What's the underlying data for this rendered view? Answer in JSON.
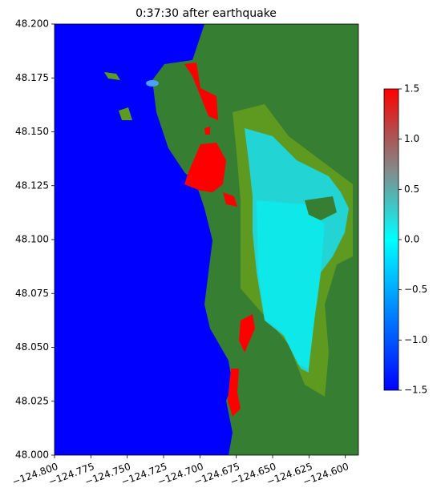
{
  "chart_data": {
    "type": "map",
    "title": "0:37:30 after earthquake",
    "xlim": [
      -124.8,
      -124.591
    ],
    "ylim": [
      48.0,
      48.2
    ],
    "xticks": [
      {
        "value": -124.8,
        "label": "−124.800"
      },
      {
        "value": -124.775,
        "label": "−124.775"
      },
      {
        "value": -124.75,
        "label": "−124.750"
      },
      {
        "value": -124.725,
        "label": "−124.725"
      },
      {
        "value": -124.7,
        "label": "−124.700"
      },
      {
        "value": -124.675,
        "label": "−124.675"
      },
      {
        "value": -124.65,
        "label": "−124.650"
      },
      {
        "value": -124.625,
        "label": "−124.625"
      },
      {
        "value": -124.6,
        "label": "−124.600"
      }
    ],
    "yticks": [
      {
        "value": 48.0,
        "label": "48.000"
      },
      {
        "value": 48.025,
        "label": "48.025"
      },
      {
        "value": 48.05,
        "label": "48.050"
      },
      {
        "value": 48.075,
        "label": "48.075"
      },
      {
        "value": 48.1,
        "label": "48.100"
      },
      {
        "value": 48.125,
        "label": "48.125"
      },
      {
        "value": 48.15,
        "label": "48.150"
      },
      {
        "value": 48.175,
        "label": "48.175"
      },
      {
        "value": 48.2,
        "label": "48.200"
      }
    ],
    "colorbar_lim": [
      -1.5,
      1.5
    ],
    "colorbar_ticks": [
      {
        "value": -1.5,
        "label": "−1.5"
      },
      {
        "value": -1.0,
        "label": "−1.0"
      },
      {
        "value": -0.5,
        "label": "−0.5"
      },
      {
        "value": 0,
        "label": "0.0"
      },
      {
        "value": 0.5,
        "label": "0.5"
      },
      {
        "value": 1.0,
        "label": "1.0"
      },
      1.5
    ]
  }
}
